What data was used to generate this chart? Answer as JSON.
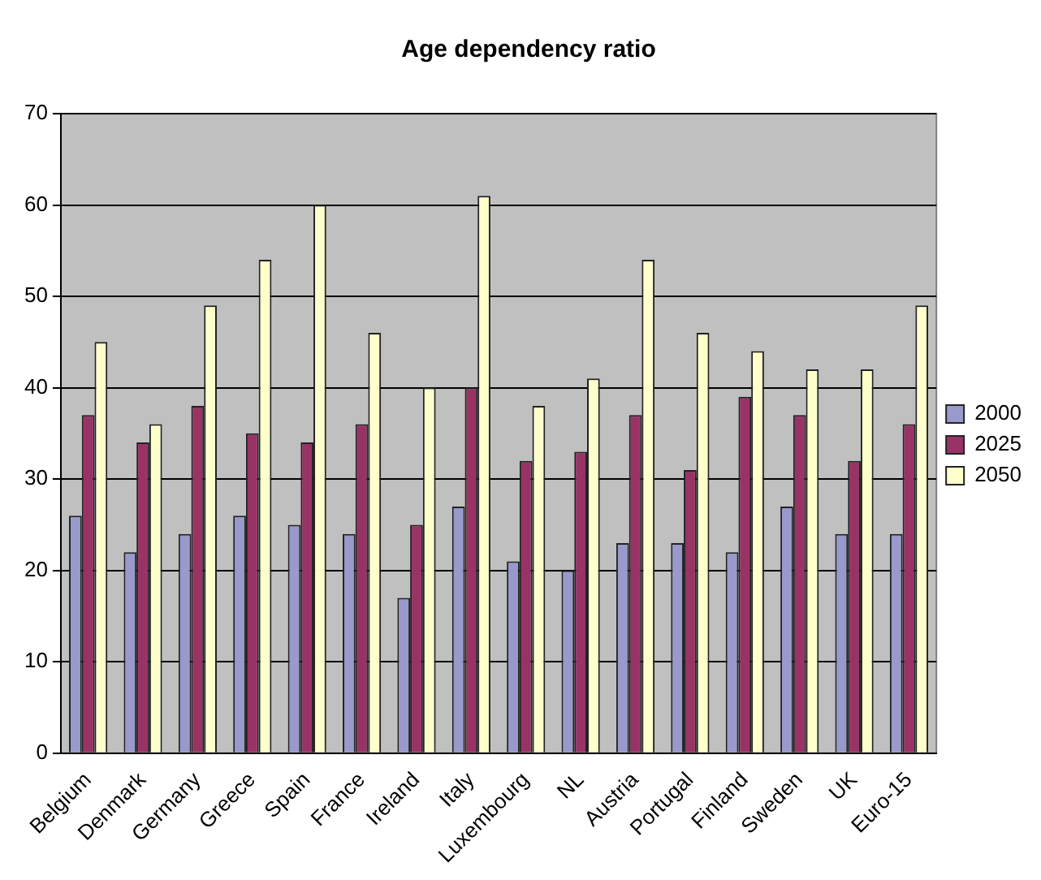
{
  "chart_data": {
    "type": "bar",
    "title": "Age dependency ratio",
    "categories": [
      "Belgium",
      "Denmark",
      "Germany",
      "Greece",
      "Spain",
      "France",
      "Ireland",
      "Italy",
      "Luxembourg",
      "NL",
      "Austria",
      "Portugal",
      "Finland",
      "Sweden",
      "UK",
      "Euro-15"
    ],
    "series": [
      {
        "name": "2000",
        "color": "#9999cc",
        "values": [
          26,
          22,
          24,
          26,
          25,
          24,
          17,
          27,
          21,
          20,
          23,
          23,
          22,
          27,
          24,
          24
        ]
      },
      {
        "name": "2025",
        "color": "#993366",
        "values": [
          37,
          34,
          38,
          35,
          34,
          36,
          25,
          40,
          32,
          33,
          37,
          31,
          39,
          37,
          32,
          36
        ]
      },
      {
        "name": "2050",
        "color": "#ffffcc",
        "values": [
          45,
          36,
          49,
          54,
          60,
          46,
          40,
          61,
          38,
          41,
          54,
          46,
          44,
          42,
          42,
          49
        ]
      }
    ],
    "ylim": [
      0,
      70
    ],
    "yticks": [
      0,
      10,
      20,
      30,
      40,
      50,
      60,
      70
    ],
    "grid": "y",
    "legend": "right"
  }
}
